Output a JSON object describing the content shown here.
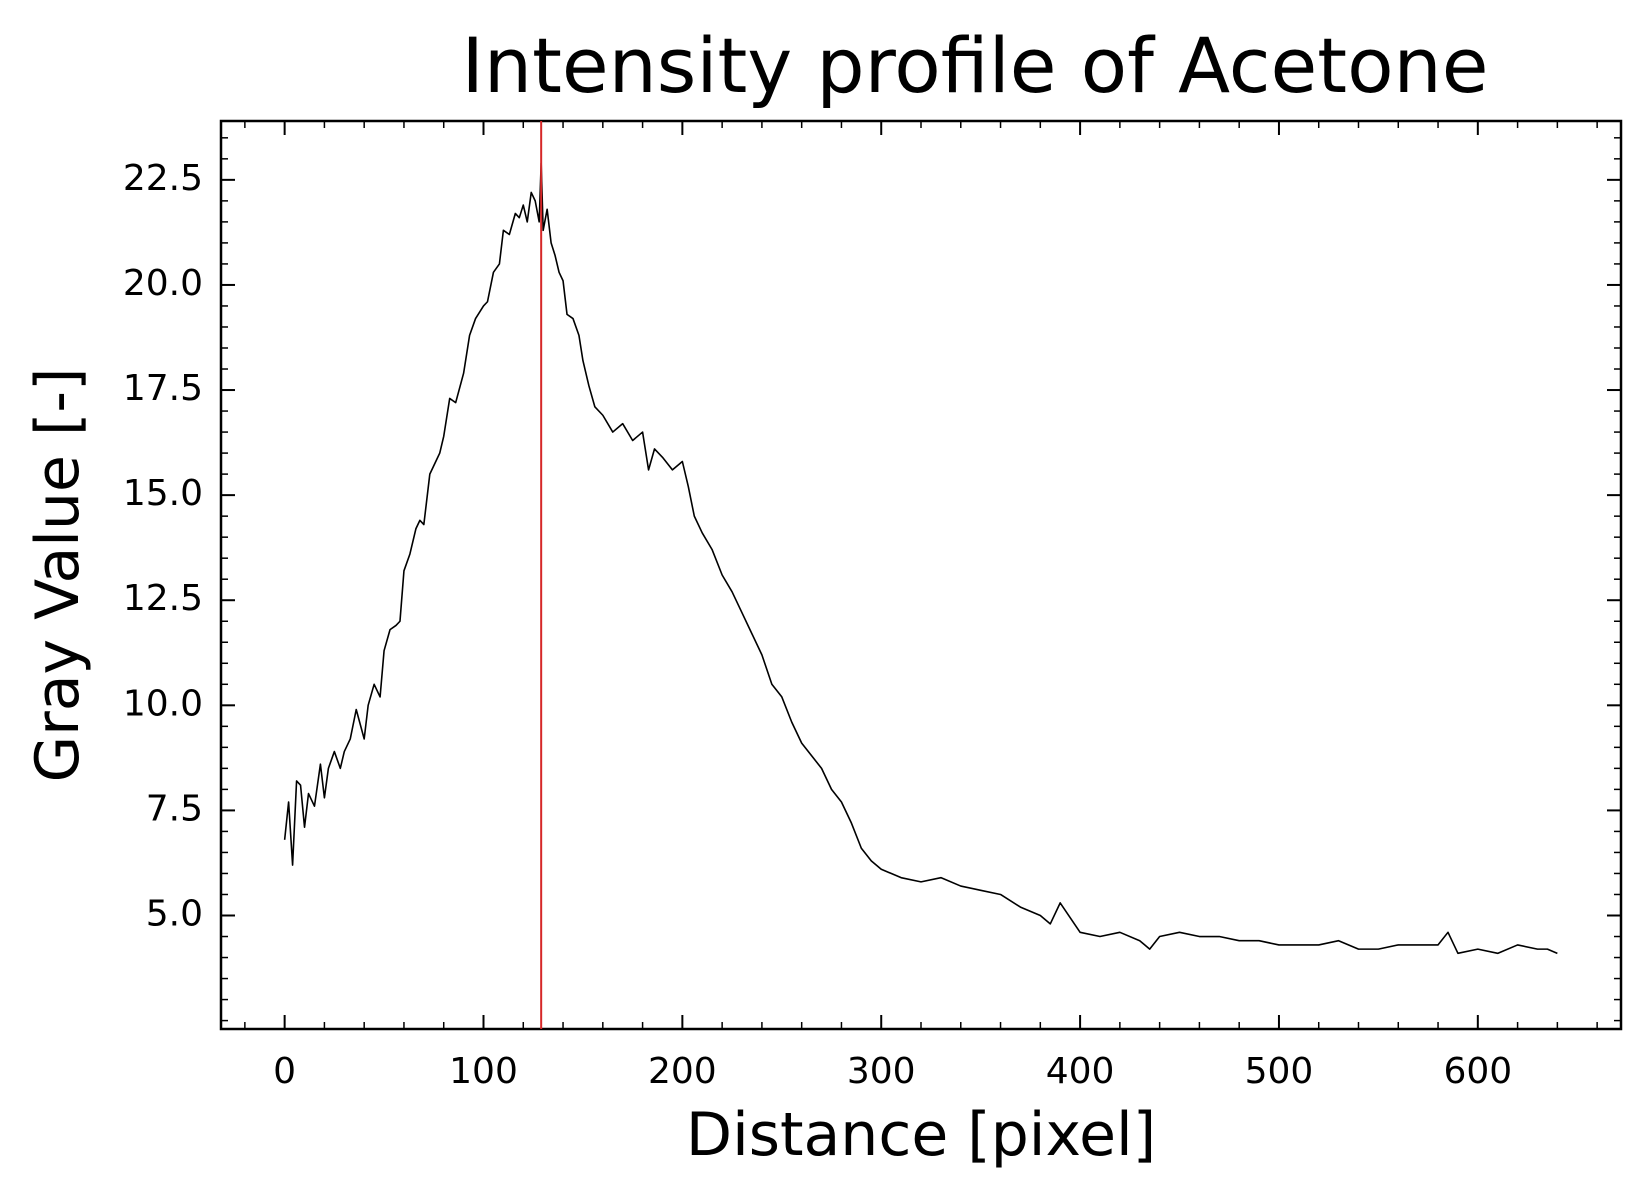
{
  "chart_data": {
    "type": "line",
    "title": "Intensity profile of Acetone",
    "xlabel": "Distance [pixel]",
    "ylabel": "Gray Value [-]",
    "xlim": [
      -32,
      672
    ],
    "ylim": [
      2.3,
      23.9
    ],
    "xticks": [
      0,
      100,
      200,
      300,
      400,
      500,
      600
    ],
    "xtick_labels": [
      "0",
      "100",
      "200",
      "300",
      "400",
      "500",
      "600"
    ],
    "yticks": [
      5.0,
      7.5,
      10.0,
      12.5,
      15.0,
      17.5,
      20.0,
      22.5
    ],
    "ytick_labels": [
      "5.0",
      "7.5",
      "10.0",
      "12.5",
      "15.0",
      "17.5",
      "20.0",
      "22.5"
    ],
    "grid": false,
    "vertical_marker": {
      "x": 129,
      "color": "#d62728"
    },
    "series": [
      {
        "color": "#000000",
        "x": [
          0,
          2,
          4,
          6,
          8,
          10,
          12,
          15,
          18,
          20,
          22,
          25,
          28,
          30,
          33,
          36,
          40,
          42,
          45,
          48,
          50,
          53,
          56,
          58,
          60,
          63,
          66,
          68,
          70,
          73,
          76,
          78,
          80,
          83,
          86,
          90,
          93,
          96,
          100,
          102,
          105,
          108,
          110,
          113,
          116,
          118,
          120,
          122,
          124,
          126,
          128,
          129,
          130,
          132,
          134,
          136,
          138,
          140,
          142,
          145,
          148,
          150,
          153,
          156,
          160,
          165,
          170,
          175,
          180,
          183,
          186,
          190,
          195,
          200,
          203,
          206,
          210,
          215,
          220,
          225,
          230,
          235,
          240,
          245,
          250,
          255,
          260,
          265,
          270,
          275,
          280,
          285,
          290,
          295,
          300,
          310,
          320,
          330,
          340,
          350,
          360,
          370,
          380,
          385,
          390,
          400,
          410,
          420,
          430,
          435,
          440,
          450,
          460,
          470,
          480,
          490,
          500,
          510,
          520,
          530,
          540,
          550,
          560,
          570,
          580,
          585,
          590,
          600,
          610,
          620,
          630,
          635,
          640
        ],
        "y": [
          6.8,
          7.7,
          6.2,
          8.2,
          8.1,
          7.1,
          7.9,
          7.6,
          8.6,
          7.8,
          8.5,
          8.9,
          8.5,
          8.9,
          9.2,
          9.9,
          9.2,
          10.0,
          10.5,
          10.2,
          11.3,
          11.8,
          11.9,
          12.0,
          13.2,
          13.6,
          14.2,
          14.4,
          14.3,
          15.5,
          15.8,
          16.0,
          16.4,
          17.3,
          17.2,
          17.9,
          18.8,
          19.2,
          19.5,
          19.6,
          20.3,
          20.5,
          21.3,
          21.2,
          21.7,
          21.6,
          21.9,
          21.5,
          22.2,
          22.0,
          21.5,
          22.9,
          21.3,
          21.8,
          21.0,
          20.7,
          20.3,
          20.1,
          19.3,
          19.2,
          18.8,
          18.2,
          17.6,
          17.1,
          16.9,
          16.5,
          16.7,
          16.3,
          16.5,
          15.6,
          16.1,
          15.9,
          15.6,
          15.8,
          15.2,
          14.5,
          14.1,
          13.7,
          13.1,
          12.7,
          12.2,
          11.7,
          11.2,
          10.5,
          10.2,
          9.6,
          9.1,
          8.8,
          8.5,
          8.0,
          7.7,
          7.2,
          6.6,
          6.3,
          6.1,
          5.9,
          5.8,
          5.9,
          5.7,
          5.6,
          5.5,
          5.2,
          5.0,
          4.8,
          5.3,
          4.6,
          4.5,
          4.6,
          4.4,
          4.2,
          4.5,
          4.6,
          4.5,
          4.5,
          4.4,
          4.4,
          4.3,
          4.3,
          4.3,
          4.4,
          4.2,
          4.2,
          4.3,
          4.3,
          4.3,
          4.6,
          4.1,
          4.2,
          4.1,
          4.3,
          4.2,
          4.2,
          4.1
        ]
      }
    ]
  }
}
